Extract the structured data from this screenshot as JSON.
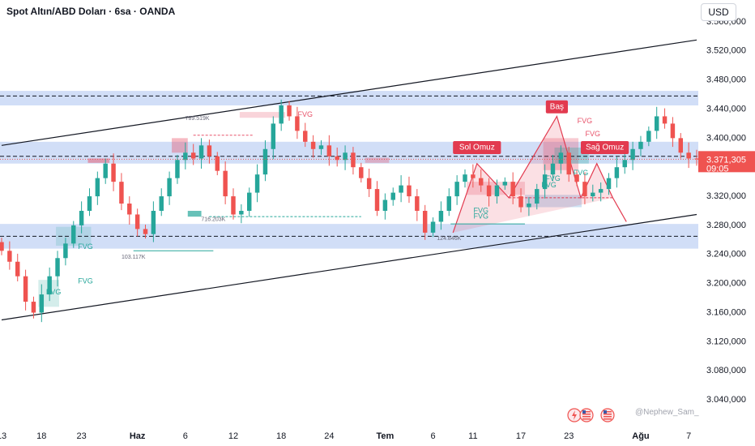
{
  "header": {
    "title": "Spot Altın/ABD Doları · 6sa · OANDA",
    "currency": "USD"
  },
  "watermark": "@Nephew_Sam_",
  "colors": {
    "up": "#26a69a",
    "down": "#ef5350",
    "zone": "#c9d8f6",
    "accent": "#e23a4f",
    "fvg_green": "#26a69a",
    "fvg_red": "#e8536a"
  },
  "icons": [
    "lightning-icon",
    "us-flag-icon",
    "us-flag-icon"
  ],
  "chart_data": {
    "type": "candlestick",
    "ylim": [
      3010,
      3590
    ],
    "y_ticks": [
      "3.560,000",
      "3.520,000",
      "3.480,000",
      "3.440,000",
      "3.400,000",
      "3.360,000",
      "3.320,000",
      "3.280,000",
      "3.240,000",
      "3.200,000",
      "3.160,000",
      "3.120,000",
      "3.080,000",
      "3.040,000"
    ],
    "x_ticks": [
      {
        "label": "13",
        "x": 0
      },
      {
        "label": "18",
        "x": 5
      },
      {
        "label": "23",
        "x": 10
      },
      {
        "label": "Haz",
        "x": 17
      },
      {
        "label": "6",
        "x": 23
      },
      {
        "label": "12",
        "x": 29
      },
      {
        "label": "18",
        "x": 35
      },
      {
        "label": "24",
        "x": 41
      },
      {
        "label": "Tem",
        "x": 48
      },
      {
        "label": "6",
        "x": 54
      },
      {
        "label": "11",
        "x": 59
      },
      {
        "label": "17",
        "x": 65
      },
      {
        "label": "23",
        "x": 71
      },
      {
        "label": "Ağu",
        "x": 80
      },
      {
        "label": "7",
        "x": 86
      }
    ],
    "x_range": [
      0,
      87
    ],
    "closes": [
      3245,
      3230,
      3210,
      3175,
      3160,
      3185,
      3210,
      3235,
      3255,
      3280,
      3300,
      3320,
      3345,
      3365,
      3340,
      3310,
      3295,
      3275,
      3268,
      3300,
      3320,
      3345,
      3370,
      3380,
      3372,
      3390,
      3375,
      3355,
      3320,
      3295,
      3300,
      3325,
      3350,
      3385,
      3420,
      3445,
      3430,
      3410,
      3395,
      3385,
      3390,
      3375,
      3370,
      3380,
      3360,
      3345,
      3330,
      3300,
      3315,
      3325,
      3335,
      3320,
      3300,
      3270,
      3285,
      3300,
      3320,
      3340,
      3350,
      3345,
      3335,
      3320,
      3335,
      3340,
      3320,
      3305,
      3310,
      3330,
      3350,
      3365,
      3380,
      3350,
      3340,
      3320,
      3325,
      3330,
      3345,
      3360,
      3370,
      3385,
      3395,
      3410,
      3430,
      3420,
      3400,
      3380,
      3372,
      3371
    ],
    "current_price": "3.371,305",
    "countdown": "09:05",
    "zones": [
      {
        "from": 3445,
        "to": 3465
      },
      {
        "from": 3365,
        "to": 3395
      },
      {
        "from": 3248,
        "to": 3282
      }
    ],
    "dashed_levels": [
      3458,
      3375,
      3265
    ],
    "channel": {
      "upper": [
        [
          0,
          3390
        ],
        [
          87,
          3535
        ]
      ],
      "lower": [
        [
          0,
          3150
        ],
        [
          87,
          3295
        ]
      ]
    },
    "pattern_labels": [
      {
        "text": "Baş",
        "x": 69.5,
        "y": 3443
      },
      {
        "text": "Sol Omuz",
        "x": 59.5,
        "y": 3387
      },
      {
        "text": "Sağ Omuz",
        "x": 75.5,
        "y": 3387
      }
    ],
    "fvg_labels": [
      {
        "text": "FVG",
        "x": 38,
        "y": 3432,
        "color": "red"
      },
      {
        "text": "FVG",
        "x": 10.5,
        "y": 3250,
        "color": "green"
      },
      {
        "text": "FVG",
        "x": 10.5,
        "y": 3203,
        "color": "green"
      },
      {
        "text": "FVG",
        "x": 6.5,
        "y": 3188,
        "color": "green"
      },
      {
        "text": "FVG",
        "x": 60,
        "y": 3300,
        "color": "green"
      },
      {
        "text": "FVG",
        "x": 60,
        "y": 3292,
        "color": "green"
      },
      {
        "text": "FVG",
        "x": 69,
        "y": 3344,
        "color": "green"
      },
      {
        "text": "FVG",
        "x": 68.5,
        "y": 3335,
        "color": "green"
      },
      {
        "text": "FVG",
        "x": 73,
        "y": 3423,
        "color": "red"
      },
      {
        "text": "FVG",
        "x": 74,
        "y": 3405,
        "color": "red"
      },
      {
        "text": "FVG",
        "x": 72.5,
        "y": 3352,
        "color": "green"
      }
    ],
    "volume_labels": [
      {
        "text": "789.519K",
        "x": 24.5,
        "y": 3427
      },
      {
        "text": "716.203K",
        "x": 26.5,
        "y": 3288
      },
      {
        "text": "103.117K",
        "x": 16.5,
        "y": 3236
      },
      {
        "text": "124.846K",
        "x": 56,
        "y": 3262
      }
    ]
  }
}
